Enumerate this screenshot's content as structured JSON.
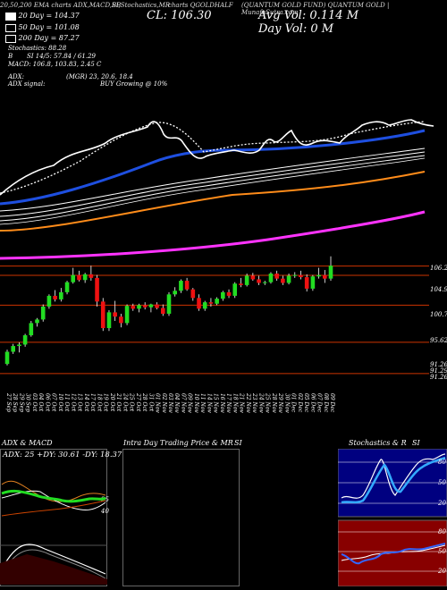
{
  "header": {
    "ema_label": "20,50,200 EMA",
    "ema_label_2": "EMA",
    "sma_bb_label": "SMA",
    "title_row": "20,50,200 EMA charts ADX,MACD,BB SI,Stochastics,MR charts QGOLDHALF (QUANTUM GOLD FUND) QUANTUM GOLD | Munafa Stocks",
    "title_mid": "SI,Stochastics,MR",
    "title_code": "charts QGOLDHALF",
    "title_right": "(QUANTUM GOLD FUND) QUANTUM GOLD | MunafaSutra.com",
    "title_left": "20,50,200 EMA charts ADX,MACD,BB",
    "cl_text": "CL: 106.30",
    "avg_vol_text": "Avg Vol: 0.114 M",
    "day_vol_text": "Day Vol: 0   M",
    "ema20_text": "20 Day = 104.37",
    "ema50_text": "50 Day = 101.08",
    "ema200_text": "200 Day = 87.27",
    "stochastics_text": "Stochastics: 88.28",
    "si_text": "SI 14/5: 57.84 / 61.29",
    "b_text": "B",
    "macd_text": "MACD: 106.8, 103.83, 2.45 C",
    "adx_text": "ADX:",
    "adx_value_text": "(MGR) 23, 20.6, 18.4",
    "adx_signal_text": "ADX signal:",
    "adx_signal_value": "BUY Growing @ 10%"
  },
  "legend_colors": {
    "ema20": "#ffffff",
    "ema50": "#ffffff",
    "ema200": "#ffffff",
    "ema20_line": "#1e4fe0",
    "ema50_line": "#ff8c1a",
    "ema200_line": "#ff33ff",
    "up": "#22dd22",
    "down": "#ee1111",
    "level": "#cc3300"
  },
  "price_levels": [
    "106.25",
    "104.95",
    "100.79",
    "95.62",
    "91.26"
  ],
  "price_levels_extra": [
    "106.25",
    "91.29",
    "91.26"
  ],
  "chart_data": {
    "type": "candlestick",
    "x": [
      "27 Sep",
      "28 Sep",
      "29 Sep",
      "30 Sep",
      "01 Oct",
      "03 Oct",
      "04 Oct",
      "05 Oct",
      "06 Oct",
      "07 Oct",
      "10 Oct",
      "11 Oct",
      "12 Oct",
      "13 Oct",
      "14 Oct",
      "17 Oct",
      "18 Oct",
      "19 Oct",
      "20 Oct",
      "21 Oct",
      "24 Oct",
      "25 Oct",
      "26 Oct",
      "27 Oct",
      "28 Oct",
      "31 Oct",
      "01 Nov",
      "02 Nov",
      "03 Nov",
      "04 Nov",
      "07 Nov",
      "08 Nov",
      "09 Nov",
      "10 Nov",
      "11 Nov",
      "14 Nov",
      "15 Nov",
      "16 Nov",
      "17 Nov",
      "18 Nov",
      "21 Nov",
      "22 Nov",
      "23 Nov",
      "24 Nov",
      "25 Nov",
      "28 Nov",
      "29 Nov",
      "30 Nov",
      "01 Dec",
      "02 Dec",
      "05 Dec",
      "06 Dec",
      "07 Dec",
      "08 Dec",
      "09 Dec"
    ],
    "x_date_labels": [
      "27 Sep",
      "28 Sep",
      "29 Sep",
      "30 Sep",
      "03 Oct",
      "04 Oct",
      "06 Oct",
      "07 Oct",
      "10 Oct",
      "11 Oct",
      "12 Oct",
      "13 Oct",
      "14 Oct",
      "17 Oct",
      "18 Oct",
      "19 Oct",
      "20 Oct",
      "21 Oct",
      "24 Oct",
      "25 Oct",
      "27 Oct",
      "28 Oct",
      "31 Oct",
      "01 Nov",
      "02 Nov",
      "03 Nov",
      "04 Nov",
      "07 Nov",
      "09 Nov",
      "10 Nov",
      "11 Nov",
      "14 Nov",
      "15 Nov",
      "16 Nov",
      "17 Nov",
      "18 Nov",
      "21 Nov",
      "22 Nov",
      "23 Nov",
      "24 Nov",
      "25 Nov",
      "28 Nov",
      "29 Nov",
      "30 Nov",
      "01 Dec",
      "02 Dec",
      "05 Dec",
      "06 Dec",
      "07 Dec",
      "08 Dec",
      "09 Dec"
    ],
    "candles": [
      {
        "o": 92.6,
        "h": 94.6,
        "l": 92.4,
        "c": 94.3
      },
      {
        "o": 94.3,
        "h": 95.4,
        "l": 94.0,
        "c": 95.1
      },
      {
        "o": 95.1,
        "h": 95.6,
        "l": 94.2,
        "c": 95.3
      },
      {
        "o": 95.3,
        "h": 96.8,
        "l": 95.0,
        "c": 96.6
      },
      {
        "o": 96.6,
        "h": 98.6,
        "l": 96.4,
        "c": 98.3
      },
      {
        "o": 98.3,
        "h": 99.0,
        "l": 97.8,
        "c": 98.8
      },
      {
        "o": 98.8,
        "h": 100.9,
        "l": 98.5,
        "c": 100.6
      },
      {
        "o": 100.6,
        "h": 102.3,
        "l": 100.3,
        "c": 102.1
      },
      {
        "o": 102.1,
        "h": 102.9,
        "l": 101.3,
        "c": 101.6
      },
      {
        "o": 101.6,
        "h": 103.2,
        "l": 101.3,
        "c": 102.6
      },
      {
        "o": 102.6,
        "h": 104.2,
        "l": 102.3,
        "c": 104.0
      },
      {
        "o": 104.0,
        "h": 106.0,
        "l": 103.8,
        "c": 105.0
      },
      {
        "o": 105.0,
        "h": 105.6,
        "l": 104.1,
        "c": 104.3
      },
      {
        "o": 104.3,
        "h": 105.3,
        "l": 103.9,
        "c": 105.1
      },
      {
        "o": 105.1,
        "h": 106.3,
        "l": 104.2,
        "c": 104.6
      },
      {
        "o": 104.6,
        "h": 105.0,
        "l": 100.6,
        "c": 101.3
      },
      {
        "o": 101.3,
        "h": 101.8,
        "l": 97.2,
        "c": 97.6
      },
      {
        "o": 97.6,
        "h": 100.1,
        "l": 97.2,
        "c": 99.8
      },
      {
        "o": 99.8,
        "h": 101.4,
        "l": 98.6,
        "c": 99.2
      },
      {
        "o": 99.2,
        "h": 99.6,
        "l": 97.7,
        "c": 98.3
      },
      {
        "o": 98.3,
        "h": 100.9,
        "l": 98.0,
        "c": 100.7
      },
      {
        "o": 100.7,
        "h": 101.0,
        "l": 100.0,
        "c": 100.3
      },
      {
        "o": 100.3,
        "h": 101.0,
        "l": 99.8,
        "c": 100.8
      },
      {
        "o": 100.8,
        "h": 101.2,
        "l": 100.2,
        "c": 100.5
      },
      {
        "o": 100.5,
        "h": 101.0,
        "l": 99.8,
        "c": 100.9
      },
      {
        "o": 100.9,
        "h": 101.2,
        "l": 100.2,
        "c": 100.4
      },
      {
        "o": 100.4,
        "h": 100.9,
        "l": 99.3,
        "c": 99.6
      },
      {
        "o": 99.6,
        "h": 102.6,
        "l": 99.3,
        "c": 102.3
      },
      {
        "o": 102.3,
        "h": 103.3,
        "l": 102.0,
        "c": 102.8
      },
      {
        "o": 102.8,
        "h": 104.4,
        "l": 102.5,
        "c": 104.2
      },
      {
        "o": 104.2,
        "h": 104.6,
        "l": 102.8,
        "c": 103.0
      },
      {
        "o": 103.0,
        "h": 103.2,
        "l": 101.4,
        "c": 101.8
      },
      {
        "o": 101.8,
        "h": 102.3,
        "l": 100.0,
        "c": 100.3
      },
      {
        "o": 100.3,
        "h": 101.4,
        "l": 100.0,
        "c": 101.2
      },
      {
        "o": 101.2,
        "h": 101.8,
        "l": 100.6,
        "c": 101.0
      },
      {
        "o": 101.0,
        "h": 101.9,
        "l": 100.8,
        "c": 101.7
      },
      {
        "o": 101.7,
        "h": 102.8,
        "l": 101.4,
        "c": 102.6
      },
      {
        "o": 102.6,
        "h": 103.0,
        "l": 101.8,
        "c": 102.1
      },
      {
        "o": 102.1,
        "h": 104.0,
        "l": 101.8,
        "c": 103.8
      },
      {
        "o": 103.8,
        "h": 104.6,
        "l": 103.3,
        "c": 103.6
      },
      {
        "o": 103.6,
        "h": 105.2,
        "l": 103.4,
        "c": 104.9
      },
      {
        "o": 104.9,
        "h": 105.3,
        "l": 104.2,
        "c": 104.4
      },
      {
        "o": 104.4,
        "h": 104.9,
        "l": 103.6,
        "c": 103.9
      },
      {
        "o": 103.9,
        "h": 104.2,
        "l": 103.6,
        "c": 104.0
      },
      {
        "o": 104.0,
        "h": 105.4,
        "l": 103.8,
        "c": 105.2
      },
      {
        "o": 105.2,
        "h": 105.6,
        "l": 104.2,
        "c": 104.5
      },
      {
        "o": 104.5,
        "h": 104.9,
        "l": 103.6,
        "c": 103.9
      },
      {
        "o": 103.9,
        "h": 105.2,
        "l": 103.7,
        "c": 104.9
      },
      {
        "o": 104.9,
        "h": 105.4,
        "l": 104.6,
        "c": 105.0
      },
      {
        "o": 105.0,
        "h": 105.6,
        "l": 104.4,
        "c": 104.7
      },
      {
        "o": 104.7,
        "h": 105.1,
        "l": 102.7,
        "c": 103.1
      },
      {
        "o": 103.1,
        "h": 105.0,
        "l": 102.8,
        "c": 104.8
      },
      {
        "o": 104.8,
        "h": 106.0,
        "l": 104.5,
        "c": 105.0
      },
      {
        "o": 105.0,
        "h": 105.7,
        "l": 103.9,
        "c": 104.5
      },
      {
        "o": 104.5,
        "h": 107.6,
        "l": 104.2,
        "c": 106.3
      }
    ],
    "ylim": [
      89.5,
      107.2
    ]
  },
  "panels": {
    "adx": {
      "title": "ADX & MACD",
      "values_text": "ADX: 25 +DY: 30.61 -DY: 18.37",
      "right_labels": [
        "25",
        "40"
      ]
    },
    "intraday": {
      "title": "Intra Day Trading Price  & MR",
      "right_label": "SI"
    },
    "stoch": {
      "title": "Stochastics & R",
      "right_label": "SI",
      "ticks": [
        "80",
        "50",
        "20"
      ]
    },
    "si": {
      "ticks": [
        "80",
        "50",
        "20"
      ]
    }
  }
}
